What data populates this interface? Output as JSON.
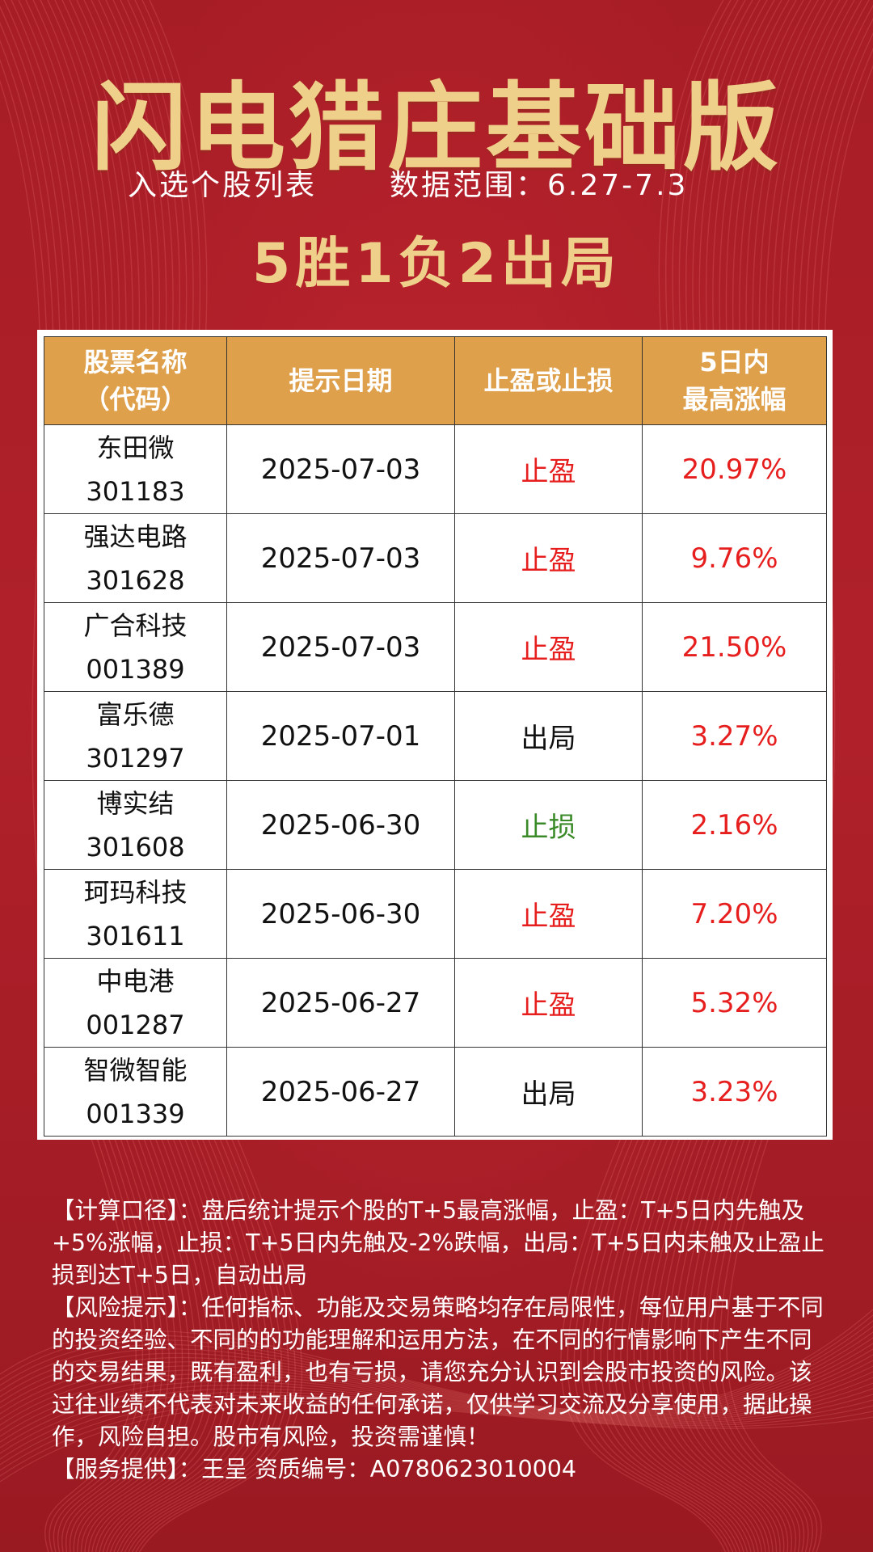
{
  "header": {
    "title": "闪电猎庄基础版",
    "subtitle_left": "入选个股列表",
    "subtitle_right": "数据范围：6.27-7.3",
    "result": "5胜1负2出局"
  },
  "table": {
    "columns": [
      {
        "line1": "股票名称",
        "line2": "（代码）"
      },
      {
        "line1": "提示日期",
        "line2": ""
      },
      {
        "line1": "止盈或止损",
        "line2": ""
      },
      {
        "line1": "5日内",
        "line2": "最高涨幅"
      }
    ],
    "rows": [
      {
        "name": "东田微",
        "code": "301183",
        "date": "2025-07-03",
        "status": "止盈",
        "status_color": "red",
        "gain": "20.97%"
      },
      {
        "name": "强达电路",
        "code": "301628",
        "date": "2025-07-03",
        "status": "止盈",
        "status_color": "red",
        "gain": "9.76%"
      },
      {
        "name": "广合科技",
        "code": "001389",
        "date": "2025-07-03",
        "status": "止盈",
        "status_color": "red",
        "gain": "21.50%"
      },
      {
        "name": "富乐德",
        "code": "301297",
        "date": "2025-07-01",
        "status": "出局",
        "status_color": "black",
        "gain": "3.27%"
      },
      {
        "name": "博实结",
        "code": "301608",
        "date": "2025-06-30",
        "status": "止损",
        "status_color": "green",
        "gain": "2.16%"
      },
      {
        "name": "珂玛科技",
        "code": "301611",
        "date": "2025-06-30",
        "status": "止盈",
        "status_color": "red",
        "gain": "7.20%"
      },
      {
        "name": "中电港",
        "code": "001287",
        "date": "2025-06-27",
        "status": "止盈",
        "status_color": "red",
        "gain": "5.32%"
      },
      {
        "name": "智微智能",
        "code": "001339",
        "date": "2025-06-27",
        "status": "出局",
        "status_color": "black",
        "gain": "3.23%"
      }
    ]
  },
  "notes": {
    "calc": "【计算口径】：盘后统计提示个股的T+5最高涨幅，止盈：T+5日内先触及+5%涨幅，止损：T+5日内先触及-2%跌幅，出局：T+5日内未触及止盈止损到达T+5日，自动出局",
    "risk": "【风险提示】：任何指标、功能及交易策略均存在局限性，每位用户基于不同的投资经验、不同的的功能理解和运用方法，在不同的行情影响下产生不同的交易结果，既有盈利，也有亏损，请您充分认识到会股市投资的风险。该过往业绩不代表对未来收益的任何承诺，仅供学习交流及分享使用，据此操作，风险自担。股市有风险，投资需谨慎！",
    "service": "【服务提供】：王呈 资质编号：A0780623010004"
  }
}
